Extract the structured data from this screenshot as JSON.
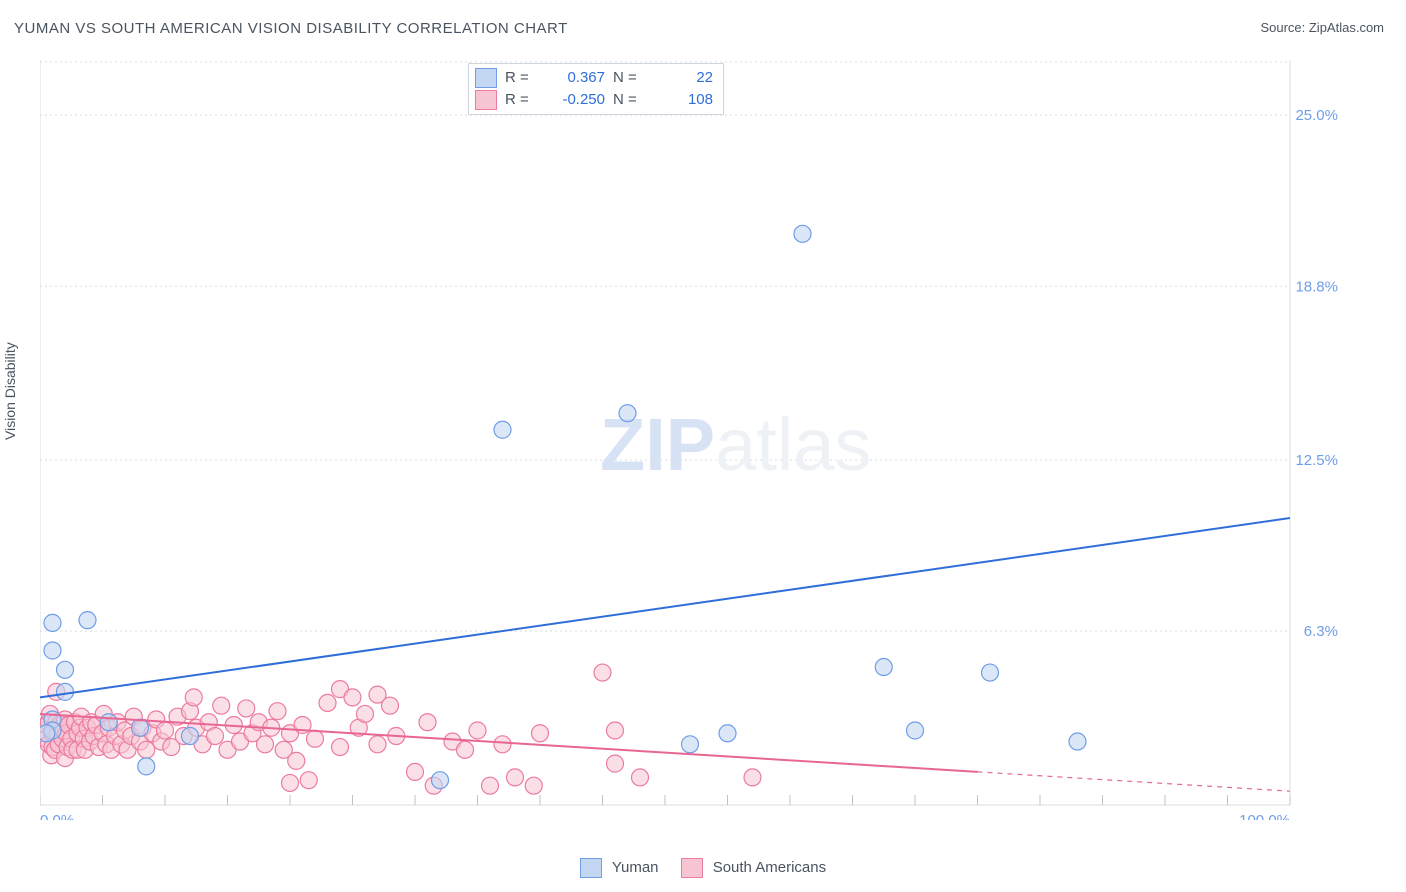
{
  "title": "YUMAN VS SOUTH AMERICAN VISION DISABILITY CORRELATION CHART",
  "source": "Source: ZipAtlas.com",
  "y_axis_label": "Vision Disability",
  "watermark": {
    "bold": "ZIP",
    "rest": "atlas"
  },
  "chart": {
    "type": "scatter",
    "background_color": "#ffffff",
    "grid_color": "#d8dde2",
    "xlim": [
      0,
      100
    ],
    "ylim": [
      0,
      27
    ],
    "x_ticks": {
      "start": 0,
      "step": 5,
      "count": 21
    },
    "x_tick_labels": [
      {
        "value": 0,
        "label": "0.0%",
        "anchor": "start"
      },
      {
        "value": 100,
        "label": "100.0%",
        "anchor": "end"
      }
    ],
    "y_ticks": [
      {
        "value": 6.3,
        "label": "6.3%"
      },
      {
        "value": 12.5,
        "label": "12.5%"
      },
      {
        "value": 18.8,
        "label": "18.8%"
      },
      {
        "value": 25.0,
        "label": "25.0%"
      }
    ],
    "marker_radius": 8.5,
    "series": {
      "blue": {
        "name": "Yuman",
        "color_fill": "#c3d7f2",
        "color_stroke": "#6f9de8",
        "trend_color": "#2f6ed9",
        "trend": {
          "x1": 0,
          "y1": 3.9,
          "x2": 100,
          "y2": 10.4
        },
        "R": "0.367",
        "N": "22",
        "points": [
          [
            1.0,
            6.6
          ],
          [
            3.8,
            6.7
          ],
          [
            1.0,
            5.6
          ],
          [
            2.0,
            4.9
          ],
          [
            2.0,
            4.1
          ],
          [
            1.0,
            3.1
          ],
          [
            1.0,
            2.7
          ],
          [
            0.5,
            2.6
          ],
          [
            8.5,
            1.4
          ],
          [
            12.0,
            2.5
          ],
          [
            8.0,
            2.8
          ],
          [
            5.5,
            3.0
          ],
          [
            32.0,
            0.9
          ],
          [
            37.0,
            13.6
          ],
          [
            47.0,
            14.2
          ],
          [
            52.0,
            2.2
          ],
          [
            61.0,
            20.7
          ],
          [
            67.5,
            5.0
          ],
          [
            76.0,
            4.8
          ],
          [
            83.0,
            2.3
          ],
          [
            70.0,
            2.7
          ],
          [
            55.0,
            2.6
          ]
        ]
      },
      "pink": {
        "name": "South Americans",
        "color_fill": "#f7c5d1",
        "color_stroke": "#ec7ba0",
        "trend_color": "#e86693",
        "trend_solid": {
          "x1": 0,
          "y1": 3.3,
          "x2": 75,
          "y2": 1.2
        },
        "trend_dash": {
          "x1": 75,
          "y1": 1.2,
          "x2": 100,
          "y2": 0.5
        },
        "R": "-0.250",
        "N": "108",
        "points": [
          [
            0.3,
            2.7
          ],
          [
            0.5,
            2.9
          ],
          [
            0.5,
            2.4
          ],
          [
            0.7,
            3.0
          ],
          [
            0.7,
            2.2
          ],
          [
            0.8,
            3.3
          ],
          [
            0.9,
            1.8
          ],
          [
            1.0,
            2.6
          ],
          [
            1.0,
            2.1
          ],
          [
            1.2,
            2.0
          ],
          [
            1.3,
            3.0
          ],
          [
            1.4,
            2.6
          ],
          [
            1.5,
            2.2
          ],
          [
            1.6,
            2.9
          ],
          [
            1.8,
            2.4
          ],
          [
            1.9,
            2.7
          ],
          [
            2.0,
            3.1
          ],
          [
            2.0,
            1.7
          ],
          [
            2.1,
            2.6
          ],
          [
            2.2,
            2.1
          ],
          [
            2.3,
            2.9
          ],
          [
            2.5,
            2.4
          ],
          [
            2.6,
            2.0
          ],
          [
            2.8,
            3.0
          ],
          [
            3.0,
            2.6
          ],
          [
            3.0,
            2.0
          ],
          [
            3.2,
            2.8
          ],
          [
            3.3,
            3.2
          ],
          [
            3.5,
            2.4
          ],
          [
            3.6,
            2.0
          ],
          [
            3.8,
            2.8
          ],
          [
            4.0,
            2.3
          ],
          [
            4.1,
            3.0
          ],
          [
            4.3,
            2.5
          ],
          [
            4.5,
            2.9
          ],
          [
            4.7,
            2.1
          ],
          [
            5.0,
            2.6
          ],
          [
            5.1,
            3.3
          ],
          [
            5.3,
            2.2
          ],
          [
            5.5,
            2.8
          ],
          [
            5.7,
            2.0
          ],
          [
            6.0,
            2.5
          ],
          [
            6.2,
            3.0
          ],
          [
            6.5,
            2.2
          ],
          [
            6.8,
            2.7
          ],
          [
            7.0,
            2.0
          ],
          [
            7.3,
            2.5
          ],
          [
            7.5,
            3.2
          ],
          [
            8.0,
            2.3
          ],
          [
            8.2,
            2.8
          ],
          [
            8.5,
            2.0
          ],
          [
            9.0,
            2.6
          ],
          [
            9.3,
            3.1
          ],
          [
            9.7,
            2.3
          ],
          [
            10.0,
            2.7
          ],
          [
            10.5,
            2.1
          ],
          [
            11.0,
            3.2
          ],
          [
            11.5,
            2.5
          ],
          [
            12.0,
            3.4
          ],
          [
            12.3,
            3.9
          ],
          [
            12.5,
            2.8
          ],
          [
            13.0,
            2.2
          ],
          [
            13.5,
            3.0
          ],
          [
            14.0,
            2.5
          ],
          [
            14.5,
            3.6
          ],
          [
            15.0,
            2.0
          ],
          [
            15.5,
            2.9
          ],
          [
            16.0,
            2.3
          ],
          [
            16.5,
            3.5
          ],
          [
            17.0,
            2.6
          ],
          [
            17.5,
            3.0
          ],
          [
            18.0,
            2.2
          ],
          [
            18.5,
            2.8
          ],
          [
            19.0,
            3.4
          ],
          [
            19.5,
            2.0
          ],
          [
            20.0,
            2.6
          ],
          [
            20.5,
            1.6
          ],
          [
            21.0,
            2.9
          ],
          [
            21.5,
            0.9
          ],
          [
            22.0,
            2.4
          ],
          [
            23.0,
            3.7
          ],
          [
            24.0,
            2.1
          ],
          [
            24.0,
            4.2
          ],
          [
            25.0,
            3.9
          ],
          [
            25.5,
            2.8
          ],
          [
            26.0,
            3.3
          ],
          [
            27.0,
            4.0
          ],
          [
            27.0,
            2.2
          ],
          [
            28.0,
            3.6
          ],
          [
            28.5,
            2.5
          ],
          [
            30.0,
            1.2
          ],
          [
            31.0,
            3.0
          ],
          [
            31.5,
            0.7
          ],
          [
            33.0,
            2.3
          ],
          [
            34.0,
            2.0
          ],
          [
            35.0,
            2.7
          ],
          [
            36.0,
            0.7
          ],
          [
            37.0,
            2.2
          ],
          [
            38.0,
            1.0
          ],
          [
            39.5,
            0.7
          ],
          [
            40.0,
            2.6
          ],
          [
            45.0,
            4.8
          ],
          [
            46.0,
            1.5
          ],
          [
            46.0,
            2.7
          ],
          [
            48.0,
            1.0
          ],
          [
            57.0,
            1.0
          ],
          [
            1.3,
            4.1
          ],
          [
            20.0,
            0.8
          ]
        ]
      }
    }
  },
  "legend_top": {
    "rows": [
      {
        "swatch": "blue",
        "R_label": "R =",
        "R": "0.367",
        "N_label": "N =",
        "N": "22"
      },
      {
        "swatch": "pink",
        "R_label": "R =",
        "R": "-0.250",
        "N_label": "N =",
        "N": "108"
      }
    ]
  },
  "legend_bottom": {
    "items": [
      {
        "swatch": "blue",
        "label": "Yuman"
      },
      {
        "swatch": "pink",
        "label": "South Americans"
      }
    ]
  }
}
